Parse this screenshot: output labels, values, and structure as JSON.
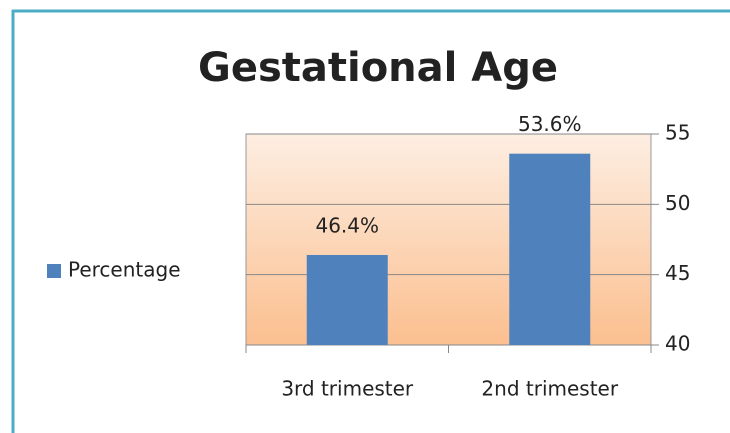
{
  "chart_data": {
    "type": "bar",
    "title": "Gestational Age",
    "categories": [
      "3rd trimester",
      "2nd trimester"
    ],
    "series": [
      {
        "name": "Percentage",
        "color": "#4f81bd",
        "values": [
          46.4,
          53.6
        ],
        "value_labels": [
          "46.4%",
          "53.6%"
        ]
      }
    ],
    "ylim": [
      40,
      55
    ],
    "yticks": [
      40,
      45,
      50,
      55
    ],
    "grid": true,
    "y_axis_side": "right",
    "legend": "left"
  }
}
